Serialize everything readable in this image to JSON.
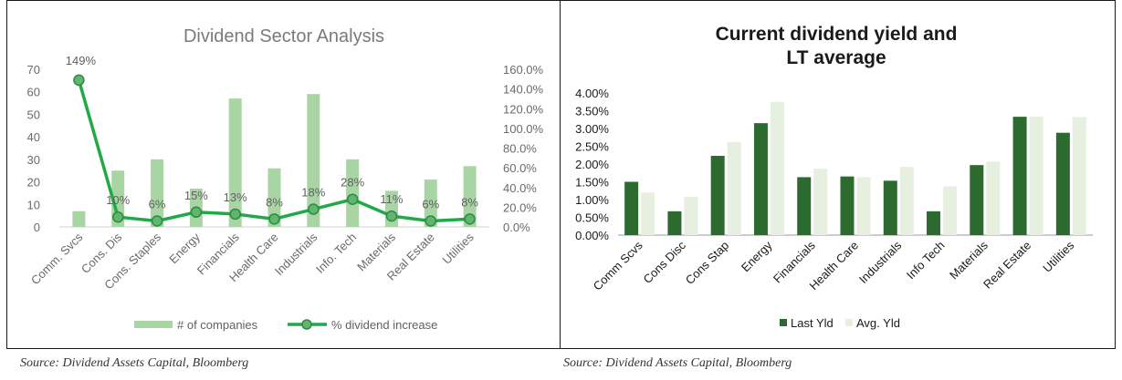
{
  "left_chart": {
    "source": "Source: Dividend Assets Capital, Bloomberg",
    "colors": {
      "bars": "#a9d5a5",
      "line": "#1faa48",
      "marker_fill": "#5fb66c",
      "marker_edge": "#2f8a47"
    }
  },
  "right_chart": {
    "source": "Source: Dividend Assets Capital, Bloomberg",
    "colors": {
      "last": "#2c6a2f",
      "avg": "#e6efe0"
    }
  },
  "chart_data": [
    {
      "type": "bar",
      "title": "Dividend Sector Analysis",
      "categories": [
        "Comm. Svcs",
        "Cons. Dis",
        "Cons. Staples",
        "Energy",
        "Financials",
        "Health Care",
        "Industrials",
        "Info. Tech",
        "Materials",
        "Real Estate",
        "Utilities"
      ],
      "series": [
        {
          "name": "# of companies",
          "type": "bar",
          "axis": "left",
          "values": [
            7,
            25,
            30,
            17,
            57,
            26,
            59,
            30,
            16,
            21,
            27
          ]
        },
        {
          "name": "% dividend increase",
          "type": "line",
          "axis": "right",
          "values": [
            149,
            10,
            6,
            15,
            13,
            8,
            18,
            28,
            11,
            6,
            8
          ],
          "labels": [
            "149%",
            "10%",
            "6%",
            "15%",
            "13%",
            "8%",
            "18%",
            "28%",
            "11%",
            "6%",
            "8%"
          ]
        }
      ],
      "ylim_left": [
        0,
        70
      ],
      "yticks_left": [
        "0",
        "10",
        "20",
        "30",
        "40",
        "50",
        "60",
        "70"
      ],
      "ylim_right": [
        0,
        160
      ],
      "yticks_right": [
        "0.0%",
        "20.0%",
        "40.0%",
        "60.0%",
        "80.0%",
        "100.0%",
        "120.0%",
        "140.0%",
        "160.0%"
      ],
      "grid": false,
      "legend": "bottom"
    },
    {
      "type": "bar",
      "title": [
        "Current dividend yield and",
        "LT average"
      ],
      "categories": [
        "Comm Scvs",
        "Cons Disc",
        "Cons Stap",
        "Energy",
        "Financials",
        "Health Care",
        "Industrials",
        "Info Tech",
        "Materials",
        "Real Estate",
        "Utilities"
      ],
      "series": [
        {
          "name": "Last Yld",
          "values": [
            1.5,
            0.67,
            2.23,
            3.15,
            1.63,
            1.65,
            1.53,
            0.67,
            1.97,
            3.33,
            2.88
          ]
        },
        {
          "name": "Avg. Yld",
          "values": [
            1.2,
            1.08,
            2.62,
            3.75,
            1.87,
            1.63,
            1.92,
            1.37,
            2.07,
            3.33,
            3.32
          ]
        }
      ],
      "ylim": [
        0,
        4
      ],
      "yticks": [
        "0.00%",
        "0.50%",
        "1.00%",
        "1.50%",
        "2.00%",
        "2.50%",
        "3.00%",
        "3.50%",
        "4.00%"
      ],
      "grid": false,
      "legend": "bottom"
    }
  ]
}
